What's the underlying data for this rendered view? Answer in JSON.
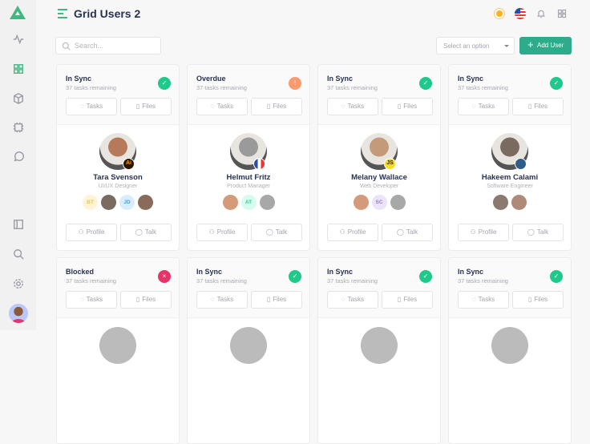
{
  "header": {
    "title": "Grid Users 2"
  },
  "search": {
    "placeholder": "Search..."
  },
  "filter": {
    "placeholder": "Select an option"
  },
  "add_user_label": "Add User",
  "buttons": {
    "tasks": "Tasks",
    "files": "Files",
    "profile": "Profile",
    "talk": "Talk"
  },
  "colors": {
    "accent": "#41b883",
    "in_sync": "#1fc98c",
    "overdue": "#fb9a6c",
    "blocked": "#e6336a"
  },
  "cards": [
    {
      "status": "In Sync",
      "remaining": "37 tasks remaining",
      "badge": "✓",
      "badge_color": "#1fc98c",
      "name": "Tara Svenson",
      "role": "UI/UX Designer",
      "tag": "Ai",
      "tag_bg": "#2a1500",
      "tag_fg": "#ff9a00",
      "avatar_color": "#b57a5a",
      "team": [
        {
          "initials": "BT",
          "bg": "#fff4d6",
          "fg": "#f5c24a"
        },
        {
          "initials": "",
          "bg": "#7a6a60"
        },
        {
          "initials": "JD",
          "bg": "#d8eefe",
          "fg": "#3ba0f0"
        },
        {
          "initials": "",
          "bg": "#8a6a58"
        }
      ]
    },
    {
      "status": "Overdue",
      "remaining": "37 tasks remaining",
      "badge": "!",
      "badge_color": "#fb9a6c",
      "name": "Helmut Fritz",
      "role": "Product Manager",
      "tag": "",
      "tag_bg": "linear-gradient(90deg,#2a4ea8 33%,#fff 33% 66%,#e33 66%)",
      "tag_fg": "#fff",
      "avatar_color": "#9a9a9a",
      "team": [
        {
          "initials": "",
          "bg": "#d49a7a"
        },
        {
          "initials": "AT",
          "bg": "#d6fbef",
          "fg": "#2fcf97"
        },
        {
          "initials": "",
          "bg": "#a8a8a8"
        }
      ]
    },
    {
      "status": "In Sync",
      "remaining": "37 tasks remaining",
      "badge": "✓",
      "badge_color": "#1fc98c",
      "name": "Melany Wallace",
      "role": "Web Developer",
      "tag": "JS",
      "tag_bg": "#f7df1e",
      "tag_fg": "#222",
      "avatar_color": "#c49a7a",
      "team": [
        {
          "initials": "",
          "bg": "#d49a7a"
        },
        {
          "initials": "SC",
          "bg": "#ebe3f7",
          "fg": "#9b7ad0"
        },
        {
          "initials": "",
          "bg": "#a8a8a8"
        }
      ]
    },
    {
      "status": "In Sync",
      "remaining": "37 tasks remaining",
      "badge": "✓",
      "badge_color": "#1fc98c",
      "name": "Hakeem Calami",
      "role": "Software Engineer",
      "tag": "",
      "tag_bg": "#2f5d8a",
      "tag_fg": "#ffd43b",
      "avatar_color": "#7a6a60",
      "team": [
        {
          "initials": "",
          "bg": "#8a7a70"
        },
        {
          "initials": "",
          "bg": "#b08a78"
        }
      ]
    },
    {
      "status": "Blocked",
      "remaining": "37 tasks remaining",
      "badge": "×",
      "badge_color": "#e6336a"
    },
    {
      "status": "In Sync",
      "remaining": "37 tasks remaining",
      "badge": "✓",
      "badge_color": "#1fc98c"
    },
    {
      "status": "In Sync",
      "remaining": "37 tasks remaining",
      "badge": "✓",
      "badge_color": "#1fc98c"
    },
    {
      "status": "In Sync",
      "remaining": "37 tasks remaining",
      "badge": "✓",
      "badge_color": "#1fc98c"
    }
  ]
}
